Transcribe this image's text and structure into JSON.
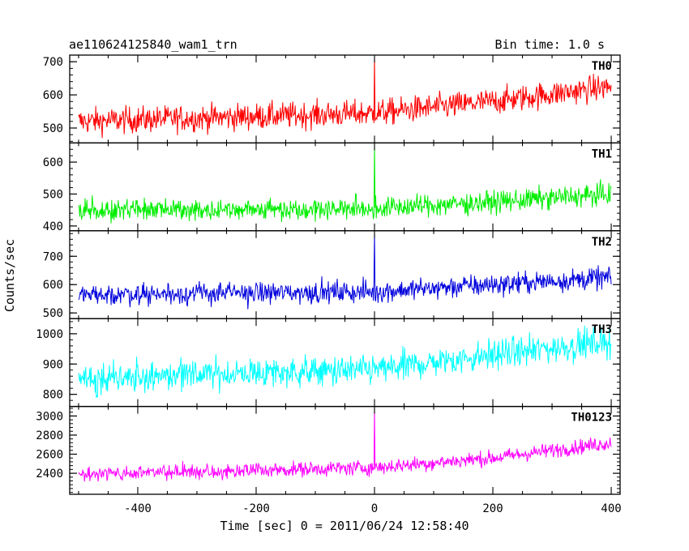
{
  "chart_data": {
    "type": "line",
    "title": "ae110624125840_wam1_trn",
    "bin_time_label": "Bin time: 1.0 s",
    "xlabel": "Time [sec] 0 = 2011/06/24 12:58:40",
    "ylabel": "Counts/sec",
    "xlim": [
      -515,
      415
    ],
    "x_ticks": [
      -400,
      -200,
      0,
      200,
      400
    ],
    "grid": false,
    "panels": [
      {
        "name": "TH0",
        "color": "#ff0000",
        "ylim": [
          455,
          720
        ],
        "y_ticks": [
          500,
          600,
          700
        ],
        "trend": {
          "x": [
            -500,
            0,
            200,
            400
          ],
          "y": [
            520,
            545,
            580,
            625
          ]
        },
        "noise": 28,
        "spike": {
          "x": 0,
          "y": 718
        }
      },
      {
        "name": "TH1",
        "color": "#00ee00",
        "ylim": [
          385,
          660
        ],
        "y_ticks": [
          400,
          500,
          600
        ],
        "trend": {
          "x": [
            -500,
            0,
            200,
            400
          ],
          "y": [
            450,
            455,
            475,
            500
          ]
        },
        "noise": 24,
        "spike": {
          "x": 0,
          "y": 655
        }
      },
      {
        "name": "TH2",
        "color": "#0000dd",
        "ylim": [
          480,
          790
        ],
        "y_ticks": [
          500,
          600,
          700
        ],
        "trend": {
          "x": [
            -500,
            0,
            200,
            400
          ],
          "y": [
            565,
            575,
            600,
            625
          ]
        },
        "noise": 27,
        "spike": {
          "x": 0,
          "y": 785
        }
      },
      {
        "name": "TH3",
        "color": "#00ffff",
        "ylim": [
          760,
          1050
        ],
        "y_ticks": [
          800,
          900,
          1000
        ],
        "trend": {
          "x": [
            -500,
            0,
            200,
            400
          ],
          "y": [
            855,
            880,
            930,
            975
          ]
        },
        "noise": 35,
        "spike": {
          "x": 0,
          "y": 905
        }
      },
      {
        "name": "TH0123",
        "color": "#ff00ff",
        "ylim": [
          2180,
          3100
        ],
        "y_ticks": [
          2400,
          2600,
          2800,
          3000
        ],
        "trend": {
          "x": [
            -500,
            0,
            200,
            400
          ],
          "y": [
            2390,
            2460,
            2560,
            2720
          ]
        },
        "noise": 55,
        "spike": {
          "x": 0,
          "y": 3080
        }
      }
    ]
  }
}
